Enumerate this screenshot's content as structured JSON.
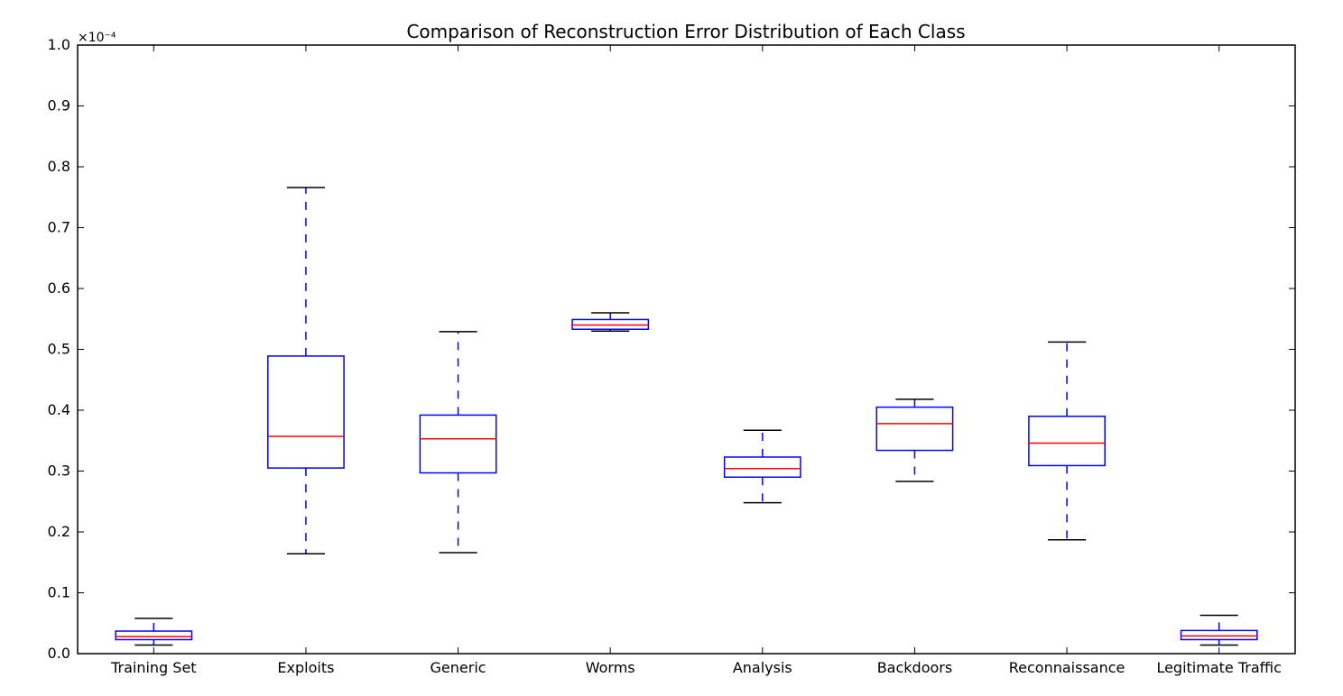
{
  "chart_data": {
    "type": "box",
    "title": "Comparison of Reconstruction Error Distribution of Each Class",
    "xlabel": "",
    "ylabel": "",
    "scale_label": "×10⁻⁴",
    "ylim": [
      0.0,
      1.0
    ],
    "yticks": [
      "0.0",
      "0.1",
      "0.2",
      "0.3",
      "0.4",
      "0.5",
      "0.6",
      "0.7",
      "0.8",
      "0.9",
      "1.0"
    ],
    "grid": false,
    "colors": {
      "box": "#0000ff",
      "median": "#ff0000",
      "cap": "#000000"
    },
    "categories": [
      "Training Set",
      "Exploits",
      "Generic",
      "Worms",
      "Analysis",
      "Backdoors",
      "Reconnaissance",
      "Legitimate Traffic"
    ],
    "boxes": [
      {
        "whislo": 0.014,
        "q1": 0.023,
        "med": 0.028,
        "q3": 0.037,
        "whishi": 0.058
      },
      {
        "whislo": 0.164,
        "q1": 0.305,
        "med": 0.357,
        "q3": 0.489,
        "whishi": 0.766
      },
      {
        "whislo": 0.166,
        "q1": 0.297,
        "med": 0.353,
        "q3": 0.392,
        "whishi": 0.529
      },
      {
        "whislo": 0.53,
        "q1": 0.533,
        "med": 0.54,
        "q3": 0.549,
        "whishi": 0.56
      },
      {
        "whislo": 0.248,
        "q1": 0.29,
        "med": 0.304,
        "q3": 0.323,
        "whishi": 0.367
      },
      {
        "whislo": 0.283,
        "q1": 0.334,
        "med": 0.378,
        "q3": 0.405,
        "whishi": 0.418
      },
      {
        "whislo": 0.187,
        "q1": 0.309,
        "med": 0.346,
        "q3": 0.39,
        "whishi": 0.512
      },
      {
        "whislo": 0.014,
        "q1": 0.023,
        "med": 0.029,
        "q3": 0.038,
        "whishi": 0.063
      }
    ]
  }
}
